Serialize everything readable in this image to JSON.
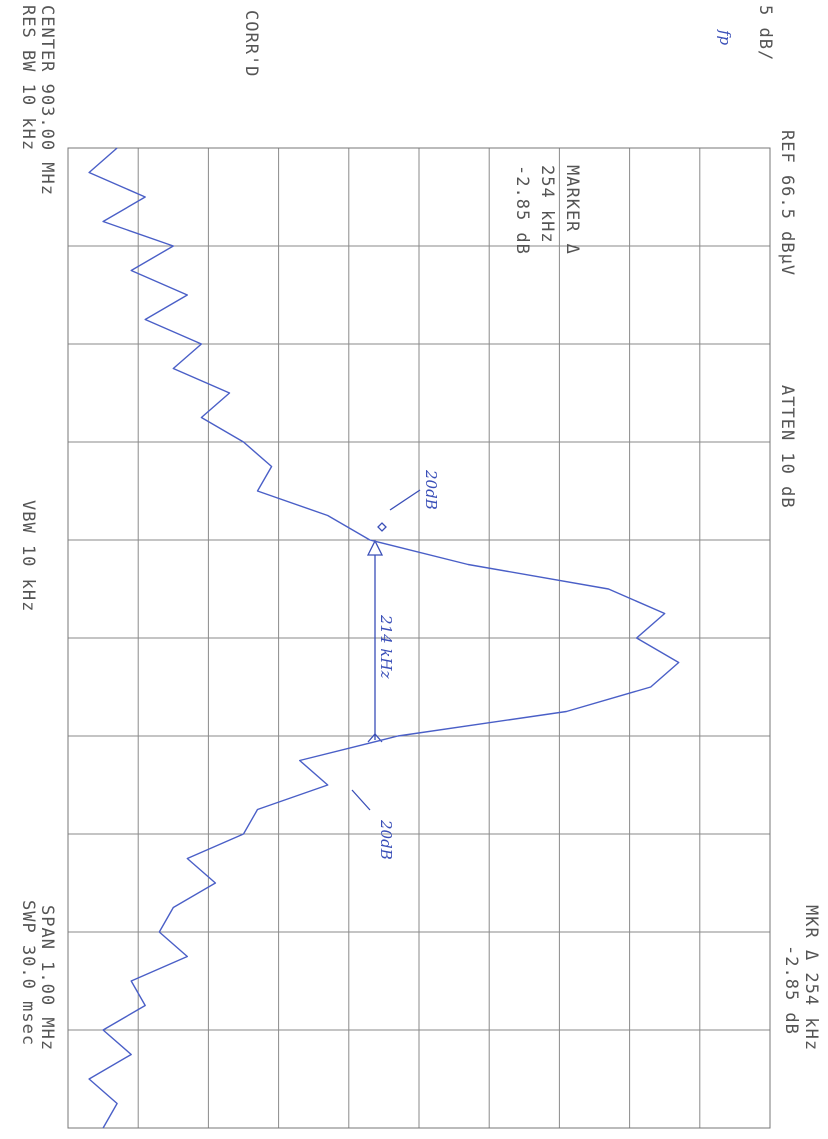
{
  "chart_data": {
    "type": "line",
    "annotations": [
      "5 dB/",
      "fp",
      "REF 66.5 dBµV",
      "ATTEN 10 dB",
      "MKR Δ 254 kHz",
      "-2.85 dB",
      "MARKER Δ",
      "254 kHz",
      "-2.85 dB",
      "CORR'D",
      "CENTER 903.00 MHz",
      "RES BW 10 kHz",
      "VBW 10 kHz",
      "SPAN 1.00 MHz",
      "SWP 30.0 msec",
      "20dB",
      "214 kHz",
      "20dB"
    ],
    "x": [
      902.5,
      902.525,
      902.55,
      902.575,
      902.6,
      902.625,
      902.65,
      902.675,
      902.7,
      902.725,
      902.75,
      902.775,
      902.8,
      902.825,
      902.85,
      902.875,
      902.9,
      902.925,
      902.95,
      902.975,
      903.0,
      903.025,
      903.05,
      903.075,
      903.1,
      903.125,
      903.15,
      903.175,
      903.2,
      903.225,
      903.25,
      903.275,
      903.3,
      903.325,
      903.35,
      903.375,
      903.4,
      903.425,
      903.45,
      903.475,
      903.5
    ],
    "series": [
      {
        "color": "#4a5fc7",
        "values": [
          20,
          18,
          22,
          19,
          24,
          21,
          25,
          22,
          26,
          24,
          28,
          26,
          29,
          31,
          30,
          35,
          38,
          45,
          55,
          59,
          57,
          60,
          58,
          52,
          40,
          33,
          35,
          30,
          29,
          25,
          27,
          24,
          23,
          25,
          21,
          22,
          19,
          21,
          18,
          20,
          19
        ]
      }
    ],
    "xlim": [
      902.5,
      903.5
    ],
    "xticks": [
      902.5,
      902.6,
      902.7,
      902.8,
      902.9,
      903.0,
      903.1,
      903.2,
      903.3,
      903.4,
      903.5
    ],
    "ylim": [
      16.5,
      66.5
    ],
    "yticks": [
      16.5,
      21.5,
      26.5,
      31.5,
      36.5,
      41.5,
      46.5,
      51.5,
      56.5,
      61.5,
      66.5
    ],
    "grid": true
  }
}
